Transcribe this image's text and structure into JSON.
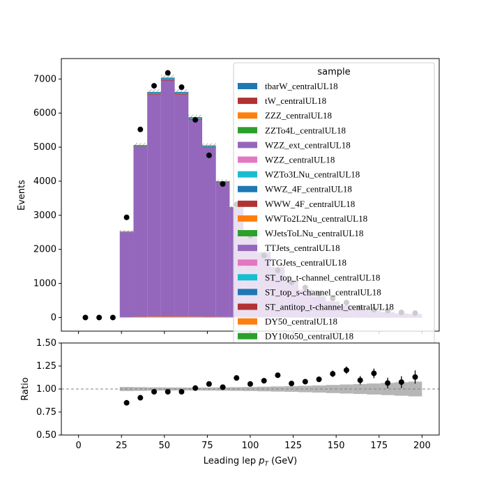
{
  "chart_data": [
    {
      "type": "bar",
      "stacked": true,
      "panel": "main",
      "ylabel": "Events",
      "xlim": [
        -10,
        210
      ],
      "ylim": [
        -400,
        7600
      ],
      "yticks": [
        0,
        1000,
        2000,
        3000,
        4000,
        5000,
        6000,
        7000
      ],
      "bin_edges": [
        0,
        8,
        16,
        24,
        32,
        40,
        48,
        56,
        64,
        72,
        80,
        88,
        96,
        104,
        112,
        120,
        128,
        136,
        144,
        152,
        160,
        168,
        176,
        184,
        192,
        200
      ],
      "x": [
        4,
        12,
        20,
        28,
        36,
        44,
        52,
        60,
        68,
        76,
        84,
        92,
        100,
        108,
        116,
        124,
        132,
        140,
        148,
        156,
        164,
        172,
        180,
        188,
        196
      ],
      "stack_total": [
        0,
        0,
        0,
        2530,
        5060,
        6620,
        7040,
        6620,
        5880,
        5050,
        4000,
        3240,
        2530,
        1920,
        1480,
        1090,
        820,
        620,
        470,
        360,
        260,
        200,
        160,
        120,
        100
      ],
      "data_points": [
        0,
        0,
        0,
        2940,
        5520,
        6800,
        7180,
        6760,
        5800,
        4760,
        3920,
        3320,
        2400,
        1820,
        1380,
        1030,
        880,
        700,
        560,
        440,
        290,
        230,
        200,
        150,
        130
      ],
      "legend": {
        "title": "sample",
        "placement": "top-right",
        "entries": [
          {
            "label": "tbarW_centralUL18",
            "color": "#1f77b4"
          },
          {
            "label": "tW_centralUL18",
            "color": "#b13232"
          },
          {
            "label": "ZZZ_centralUL18",
            "color": "#ff7f0e"
          },
          {
            "label": "ZZTo4L_centralUL18",
            "color": "#2ca02c"
          },
          {
            "label": "WZZ_ext_centralUL18",
            "color": "#9467bd"
          },
          {
            "label": "WZZ_centralUL18",
            "color": "#e377c2"
          },
          {
            "label": "WZTo3LNu_centralUL18",
            "color": "#17becf"
          },
          {
            "label": "WWZ_4F_centralUL18",
            "color": "#1f77b4"
          },
          {
            "label": "WWW_4F_centralUL18",
            "color": "#b13232"
          },
          {
            "label": "WWTo2L2Nu_centralUL18",
            "color": "#ff7f0e"
          },
          {
            "label": "WJetsToLNu_centralUL18",
            "color": "#2ca02c"
          },
          {
            "label": "TTJets_centralUL18",
            "color": "#9467bd"
          },
          {
            "label": "TTGJets_centralUL18",
            "color": "#e377c2"
          },
          {
            "label": "ST_top_t-channel_centralUL18",
            "color": "#17becf"
          },
          {
            "label": "ST_top_s-channel_centralUL18",
            "color": "#1f77b4"
          },
          {
            "label": "ST_antitop_t-channel_centralUL18",
            "color": "#b13232"
          },
          {
            "label": "DY50_centralUL18",
            "color": "#ff7f0e"
          },
          {
            "label": "DY10to50_centralUL18",
            "color": "#2ca02c"
          }
        ]
      }
    },
    {
      "type": "scatter",
      "panel": "ratio",
      "xlabel": "Leading lep p_T (GeV)",
      "xlabel_main": "Leading lep ",
      "xlabel_sub": "T",
      "xlabel_unit": " (GeV)",
      "ylabel": "Ratio",
      "xlim": [
        -10,
        210
      ],
      "ylim": [
        0.5,
        1.5
      ],
      "xticks": [
        0,
        25,
        50,
        75,
        100,
        125,
        150,
        175,
        200
      ],
      "yticks": [
        0.5,
        0.75,
        1.0,
        1.25,
        1.5
      ],
      "ytick_labels": [
        "0.50",
        "0.75",
        "1.00",
        "1.25",
        "1.50"
      ],
      "reference_line": 1.0,
      "x": [
        28,
        36,
        44,
        52,
        60,
        68,
        76,
        84,
        92,
        100,
        108,
        116,
        124,
        132,
        140,
        148,
        156,
        164,
        172,
        180,
        188,
        196
      ],
      "ratio": [
        0.85,
        0.905,
        0.97,
        0.97,
        0.97,
        1.01,
        1.055,
        1.02,
        1.12,
        1.055,
        1.09,
        1.15,
        1.06,
        1.08,
        1.105,
        1.165,
        1.205,
        1.095,
        1.17,
        1.065,
        1.075,
        1.13
      ],
      "ratio_err": [
        0.006,
        0.006,
        0.006,
        0.005,
        0.006,
        0.007,
        0.008,
        0.009,
        0.011,
        0.013,
        0.016,
        0.019,
        0.022,
        0.026,
        0.03,
        0.035,
        0.04,
        0.046,
        0.052,
        0.058,
        0.064,
        0.072
      ],
      "band_halfwidth": [
        0.022,
        0.02,
        0.018,
        0.017,
        0.016,
        0.016,
        0.017,
        0.018,
        0.02,
        0.022,
        0.025,
        0.028,
        0.031,
        0.035,
        0.039,
        0.044,
        0.049,
        0.054,
        0.06,
        0.066,
        0.073,
        0.08
      ]
    }
  ]
}
